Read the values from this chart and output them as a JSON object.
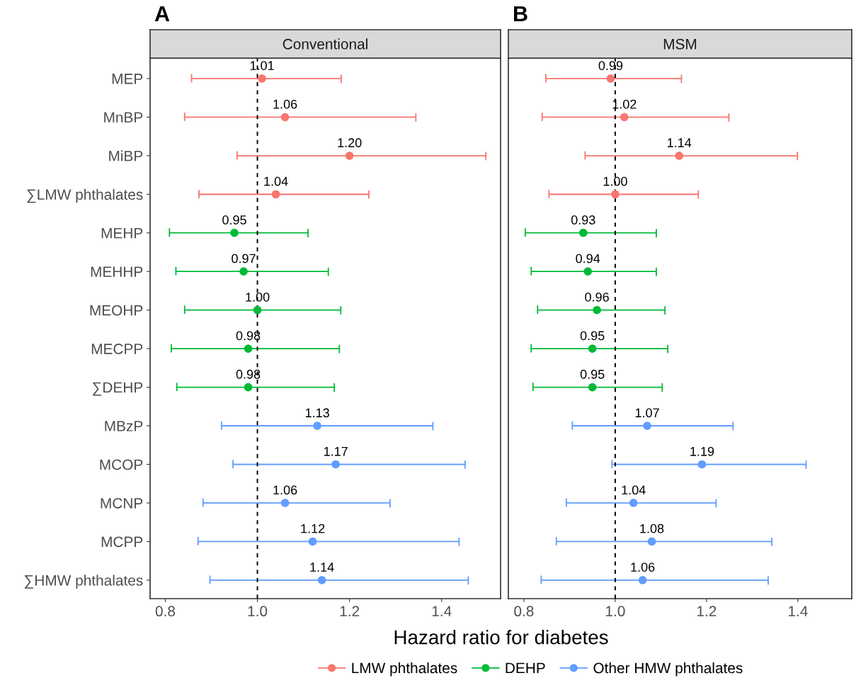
{
  "chart_data": [
    {
      "type": "scatter",
      "orientation": "horizontal",
      "title": "Conventional",
      "xlabel": "Hazard ratio for diabetes",
      "annotations": [
        "A"
      ],
      "categories": [
        "MEP",
        "MnBP",
        "MiBP",
        "∑LMW phthalates",
        "MEHP",
        "MEHHP",
        "MEOHP",
        "MECPP",
        "∑DEHP",
        "MBzP",
        "MCOP",
        "MCNP",
        "MCPP",
        "∑HMW phthalates"
      ],
      "series": [
        {
          "name": "LMW phthalates",
          "color": "#f8766d",
          "values": [
            1.01,
            1.06,
            1.2,
            1.04,
            null,
            null,
            null,
            null,
            null,
            null,
            null,
            null,
            null,
            null
          ],
          "value_labels": [
            "1.01",
            "1.06",
            "1.20",
            "1.04",
            null,
            null,
            null,
            null,
            null,
            null,
            null,
            null,
            null,
            null
          ],
          "errors": [
            [
              0.857,
              1.182
            ],
            [
              0.842,
              1.344
            ],
            [
              0.956,
              1.496
            ],
            [
              0.873,
              1.242
            ],
            null,
            null,
            null,
            null,
            null,
            null,
            null,
            null,
            null,
            null
          ]
        },
        {
          "name": "DEHP",
          "color": "#00ba38",
          "values": [
            null,
            null,
            null,
            null,
            0.95,
            0.97,
            1.0,
            0.98,
            0.98,
            null,
            null,
            null,
            null,
            null
          ],
          "value_labels": [
            null,
            null,
            null,
            null,
            "0.95",
            "0.97",
            "1.00",
            "0.98",
            "0.98",
            null,
            null,
            null,
            null,
            null
          ],
          "errors": [
            null,
            null,
            null,
            null,
            [
              0.809,
              1.11
            ],
            [
              0.823,
              1.154
            ],
            [
              0.842,
              1.181
            ],
            [
              0.813,
              1.178
            ],
            [
              0.825,
              1.167
            ],
            null,
            null,
            null,
            null,
            null
          ]
        },
        {
          "name": "Other HMW phthalates",
          "color": "#619cff",
          "values": [
            null,
            null,
            null,
            null,
            null,
            null,
            null,
            null,
            null,
            1.13,
            1.17,
            1.06,
            1.12,
            1.14
          ],
          "value_labels": [
            null,
            null,
            null,
            null,
            null,
            null,
            null,
            null,
            null,
            "1.13",
            "1.17",
            "1.06",
            "1.12",
            "1.14"
          ],
          "errors": [
            null,
            null,
            null,
            null,
            null,
            null,
            null,
            null,
            null,
            [
              0.922,
              1.381
            ],
            [
              0.947,
              1.451
            ],
            [
              0.882,
              1.288
            ],
            [
              0.871,
              1.438
            ],
            [
              0.897,
              1.458
            ]
          ]
        }
      ],
      "xlim": [
        0.767,
        1.528
      ],
      "xticks": [
        {
          "value": 0.8,
          "label": "0.8"
        },
        {
          "value": 1.0,
          "label": "1.0"
        },
        {
          "value": 1.2,
          "label": "1.2"
        },
        {
          "value": 1.4,
          "label": "1.4"
        }
      ],
      "ref_lines": [
        {
          "axis": "x",
          "value": 1.0,
          "line_style": "dashed",
          "color": "#000000"
        }
      ],
      "marker": "circle",
      "grid": false,
      "legend": "bottom"
    },
    {
      "type": "scatter",
      "orientation": "horizontal",
      "title": "MSM",
      "annotations": [
        "B"
      ],
      "categories": [
        null,
        null,
        null,
        null,
        null,
        null,
        null,
        null,
        null,
        null,
        null,
        null,
        null,
        null
      ],
      "series": [
        {
          "color": "#f8766d",
          "values": [
            0.99,
            1.02,
            1.14,
            1.0,
            null,
            null,
            null,
            null,
            null,
            null,
            null,
            null,
            null,
            null
          ],
          "value_labels": [
            "0.99",
            "1.02",
            "1.14",
            "1.00",
            null,
            null,
            null,
            null,
            null,
            null,
            null,
            null,
            null,
            null
          ],
          "errors": [
            [
              0.848,
              1.145
            ],
            [
              0.84,
              1.249
            ],
            [
              0.934,
              1.399
            ],
            [
              0.855,
              1.182
            ],
            null,
            null,
            null,
            null,
            null,
            null,
            null,
            null,
            null,
            null
          ]
        },
        {
          "color": "#00ba38",
          "values": [
            null,
            null,
            null,
            null,
            0.93,
            0.94,
            0.96,
            0.95,
            0.95,
            null,
            null,
            null,
            null,
            null
          ],
          "value_labels": [
            null,
            null,
            null,
            null,
            "0.93",
            "0.94",
            "0.96",
            "0.95",
            "0.95",
            null,
            null,
            null,
            null,
            null
          ],
          "errors": [
            null,
            null,
            null,
            null,
            [
              0.803,
              1.09
            ],
            [
              0.816,
              1.09
            ],
            [
              0.83,
              1.109
            ],
            [
              0.816,
              1.115
            ],
            [
              0.82,
              1.103
            ],
            null,
            null,
            null,
            null,
            null
          ]
        },
        {
          "color": "#619cff",
          "values": [
            null,
            null,
            null,
            null,
            null,
            null,
            null,
            null,
            null,
            1.07,
            1.19,
            1.04,
            1.08,
            1.06
          ],
          "value_labels": [
            null,
            null,
            null,
            null,
            null,
            null,
            null,
            null,
            null,
            "1.07",
            "1.19",
            "1.04",
            "1.08",
            "1.06"
          ],
          "errors": [
            null,
            null,
            null,
            null,
            null,
            null,
            null,
            null,
            null,
            [
              0.906,
              1.258
            ],
            [
              0.993,
              1.418
            ],
            [
              0.893,
              1.221
            ],
            [
              0.871,
              1.343
            ],
            [
              0.838,
              1.335
            ]
          ]
        }
      ],
      "xlim": [
        0.766,
        1.518
      ],
      "xticks": [
        {
          "value": 0.8,
          "label": "0.8"
        },
        {
          "value": 1.0,
          "label": "1.0"
        },
        {
          "value": 1.2,
          "label": "1.2"
        },
        {
          "value": 1.4,
          "label": "1.4"
        }
      ],
      "ref_lines": [
        {
          "axis": "x",
          "value": 1.0,
          "line_style": "dashed",
          "color": "#000000"
        }
      ],
      "marker": "circle",
      "grid": false
    }
  ]
}
